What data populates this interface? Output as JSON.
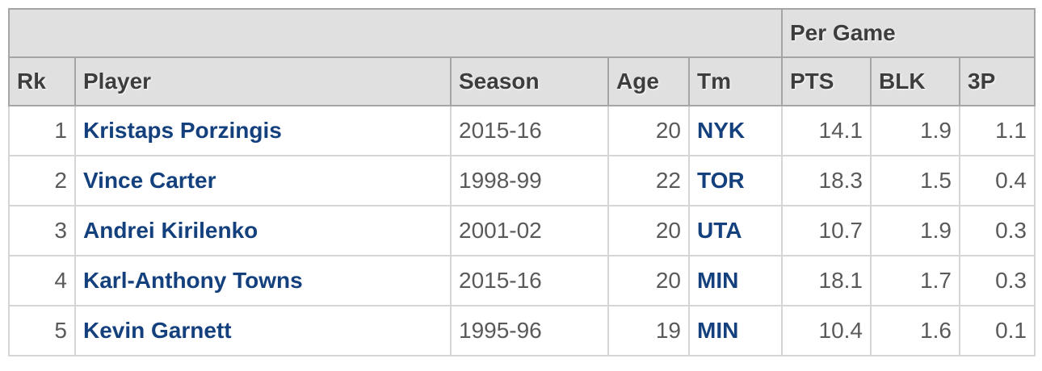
{
  "table": {
    "over_header": {
      "per_game_label": "Per Game"
    },
    "headers": {
      "rk": "Rk",
      "player": "Player",
      "season": "Season",
      "age": "Age",
      "tm": "Tm",
      "pts": "PTS",
      "blk": "BLK",
      "p3": "3P"
    },
    "rows": [
      {
        "rk": "1",
        "player": "Kristaps Porzingis",
        "season": "2015-16",
        "age": "20",
        "tm": "NYK",
        "pts": "14.1",
        "blk": "1.9",
        "p3": "1.1"
      },
      {
        "rk": "2",
        "player": "Vince Carter",
        "season": "1998-99",
        "age": "22",
        "tm": "TOR",
        "pts": "18.3",
        "blk": "1.5",
        "p3": "0.4"
      },
      {
        "rk": "3",
        "player": "Andrei Kirilenko",
        "season": "2001-02",
        "age": "20",
        "tm": "UTA",
        "pts": "10.7",
        "blk": "1.9",
        "p3": "0.3"
      },
      {
        "rk": "4",
        "player": "Karl-Anthony Towns",
        "season": "2015-16",
        "age": "20",
        "tm": "MIN",
        "pts": "18.1",
        "blk": "1.7",
        "p3": "0.3"
      },
      {
        "rk": "5",
        "player": "Kevin Garnett",
        "season": "1995-96",
        "age": "19",
        "tm": "MIN",
        "pts": "10.4",
        "blk": "1.6",
        "p3": "0.1"
      }
    ]
  },
  "colors": {
    "link": "#14417d",
    "header_background": "#e0e0e0",
    "header_text": "#3d3d3d",
    "header_border": "#a5a5a5",
    "cell_border": "#d5d5d5",
    "data_text": "#5a5a5a",
    "page_background": "#ffffff"
  }
}
